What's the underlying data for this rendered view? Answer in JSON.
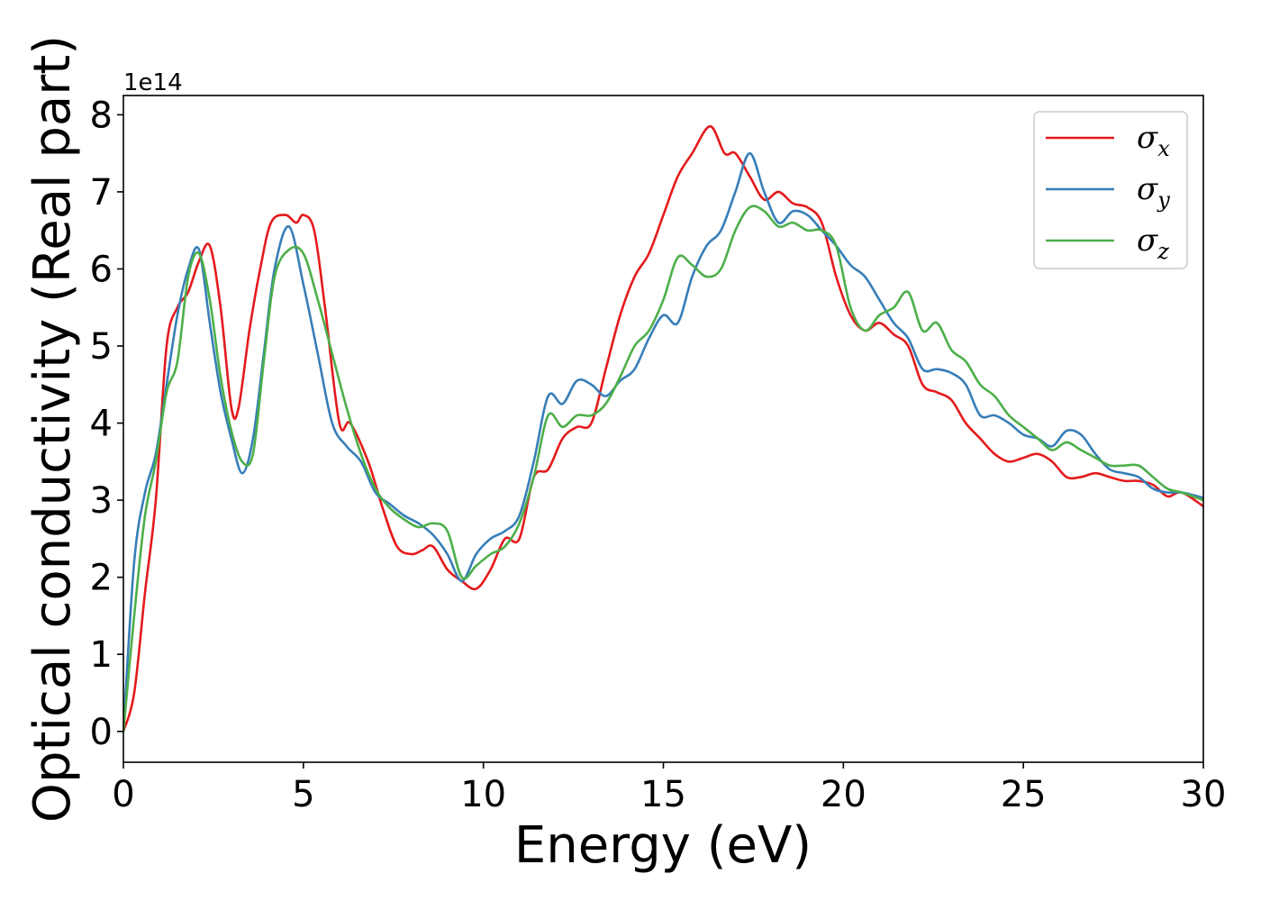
{
  "chart_data": {
    "type": "line",
    "xlabel": "Energy (eV)",
    "ylabel": "Optical conductivity (Real part)",
    "y_offset_label": "1e14",
    "xlim": [
      0,
      30
    ],
    "ylim": [
      -0.4,
      8.25
    ],
    "xticks": [
      "0",
      "5",
      "10",
      "15",
      "20",
      "25",
      "30"
    ],
    "yticks": [
      "0",
      "1",
      "2",
      "3",
      "4",
      "5",
      "6",
      "7",
      "8"
    ],
    "grid": false,
    "legend": {
      "position": "top-right"
    },
    "series": [
      {
        "name": "σx",
        "symbol": "σ",
        "subscript": "x",
        "color": "#e41a1c",
        "x": [
          0,
          0.3,
          0.6,
          0.9,
          1.2,
          1.5,
          1.8,
          2.1,
          2.4,
          2.7,
          3.0,
          3.2,
          3.5,
          3.8,
          4.1,
          4.5,
          4.8,
          5.0,
          5.3,
          5.6,
          6.0,
          6.3,
          6.8,
          7.2,
          7.6,
          8.0,
          8.3,
          8.6,
          9.0,
          9.4,
          9.8,
          10.2,
          10.6,
          11.0,
          11.4,
          11.8,
          12.2,
          12.6,
          13.0,
          13.4,
          13.8,
          14.2,
          14.6,
          15.0,
          15.4,
          15.8,
          16.3,
          16.7,
          17.0,
          17.4,
          17.8,
          18.2,
          18.6,
          19.0,
          19.4,
          19.8,
          20.2,
          20.6,
          21.0,
          21.4,
          21.8,
          22.2,
          22.6,
          23.0,
          23.4,
          23.8,
          24.2,
          24.6,
          25.0,
          25.4,
          25.8,
          26.2,
          26.6,
          27.0,
          27.4,
          27.8,
          28.2,
          28.6,
          29.0,
          29.4,
          30.0
        ],
        "y": [
          0,
          0.5,
          1.8,
          3.0,
          5.0,
          5.5,
          5.7,
          6.1,
          6.3,
          5.5,
          4.2,
          4.2,
          5.2,
          6.0,
          6.6,
          6.7,
          6.6,
          6.7,
          6.5,
          5.5,
          4.0,
          4.0,
          3.5,
          2.9,
          2.4,
          2.3,
          2.35,
          2.4,
          2.1,
          1.95,
          1.85,
          2.1,
          2.5,
          2.5,
          3.3,
          3.4,
          3.8,
          3.95,
          4.0,
          4.7,
          5.4,
          5.9,
          6.2,
          6.7,
          7.2,
          7.5,
          7.85,
          7.5,
          7.5,
          7.2,
          6.9,
          7.0,
          6.85,
          6.8,
          6.6,
          5.9,
          5.4,
          5.2,
          5.3,
          5.15,
          5.0,
          4.5,
          4.4,
          4.3,
          4.0,
          3.8,
          3.6,
          3.5,
          3.55,
          3.6,
          3.5,
          3.3,
          3.3,
          3.35,
          3.3,
          3.25,
          3.25,
          3.2,
          3.05,
          3.1,
          2.92
        ]
      },
      {
        "name": "σy",
        "symbol": "σ",
        "subscript": "y",
        "color": "#377eb8",
        "x": [
          0,
          0.3,
          0.6,
          0.9,
          1.2,
          1.5,
          1.8,
          2.1,
          2.4,
          2.7,
          3.0,
          3.3,
          3.6,
          3.9,
          4.2,
          4.6,
          5.0,
          5.4,
          5.8,
          6.2,
          6.6,
          7.0,
          7.4,
          7.8,
          8.2,
          8.6,
          9.0,
          9.4,
          9.8,
          10.2,
          10.6,
          11.0,
          11.4,
          11.8,
          12.2,
          12.6,
          13.0,
          13.4,
          13.8,
          14.2,
          14.6,
          15.0,
          15.4,
          15.8,
          16.2,
          16.6,
          17.0,
          17.4,
          17.8,
          18.2,
          18.6,
          19.0,
          19.4,
          19.8,
          20.2,
          20.6,
          21.0,
          21.4,
          21.8,
          22.2,
          22.6,
          23.0,
          23.4,
          23.8,
          24.2,
          24.6,
          25.0,
          25.4,
          25.8,
          26.2,
          26.6,
          27.0,
          27.4,
          27.8,
          28.2,
          28.6,
          29.0,
          29.4,
          30.0
        ],
        "y": [
          0,
          2.2,
          3.1,
          3.6,
          4.5,
          5.4,
          6.0,
          6.25,
          5.3,
          4.4,
          3.8,
          3.35,
          3.8,
          4.9,
          6.0,
          6.55,
          5.8,
          4.9,
          4.0,
          3.7,
          3.5,
          3.1,
          2.95,
          2.8,
          2.7,
          2.55,
          2.3,
          1.95,
          2.3,
          2.5,
          2.6,
          2.8,
          3.5,
          4.35,
          4.25,
          4.55,
          4.5,
          4.35,
          4.55,
          4.7,
          5.1,
          5.4,
          5.3,
          5.9,
          6.3,
          6.5,
          7.0,
          7.5,
          7.0,
          6.6,
          6.75,
          6.7,
          6.5,
          6.3,
          6.05,
          5.9,
          5.6,
          5.3,
          5.1,
          4.7,
          4.7,
          4.65,
          4.5,
          4.1,
          4.1,
          4.0,
          3.85,
          3.8,
          3.7,
          3.9,
          3.85,
          3.6,
          3.4,
          3.35,
          3.3,
          3.15,
          3.1,
          3.1,
          3.03
        ]
      },
      {
        "name": "σz",
        "symbol": "σ",
        "subscript": "z",
        "color": "#4daf4a",
        "x": [
          0,
          0.3,
          0.6,
          0.9,
          1.2,
          1.5,
          1.8,
          2.1,
          2.4,
          2.7,
          3.0,
          3.3,
          3.6,
          3.9,
          4.2,
          4.6,
          5.0,
          5.4,
          5.8,
          6.2,
          6.6,
          7.0,
          7.4,
          7.8,
          8.2,
          8.6,
          9.0,
          9.4,
          9.8,
          10.2,
          10.6,
          11.0,
          11.4,
          11.8,
          12.2,
          12.6,
          13.0,
          13.4,
          13.8,
          14.2,
          14.6,
          15.0,
          15.4,
          15.8,
          16.2,
          16.6,
          17.0,
          17.4,
          17.8,
          18.2,
          18.6,
          19.0,
          19.4,
          19.8,
          20.2,
          20.6,
          21.0,
          21.4,
          21.8,
          22.2,
          22.6,
          23.0,
          23.4,
          23.8,
          24.2,
          24.6,
          25.0,
          25.4,
          25.8,
          26.2,
          26.6,
          27.0,
          27.4,
          27.8,
          28.2,
          28.6,
          29.0,
          29.4,
          30.0
        ],
        "y": [
          0,
          1.5,
          2.8,
          3.5,
          4.4,
          4.8,
          5.9,
          6.2,
          5.6,
          4.6,
          3.9,
          3.5,
          3.6,
          4.8,
          5.9,
          6.25,
          6.2,
          5.6,
          4.9,
          4.2,
          3.6,
          3.15,
          2.9,
          2.75,
          2.65,
          2.7,
          2.6,
          2.0,
          2.15,
          2.3,
          2.4,
          2.7,
          3.3,
          4.1,
          3.95,
          4.1,
          4.1,
          4.25,
          4.6,
          5.0,
          5.2,
          5.6,
          6.15,
          6.05,
          5.9,
          6.0,
          6.5,
          6.8,
          6.75,
          6.55,
          6.6,
          6.5,
          6.5,
          6.3,
          5.5,
          5.2,
          5.4,
          5.5,
          5.7,
          5.2,
          5.3,
          4.95,
          4.8,
          4.5,
          4.35,
          4.1,
          3.95,
          3.8,
          3.65,
          3.75,
          3.65,
          3.55,
          3.45,
          3.45,
          3.45,
          3.3,
          3.15,
          3.1,
          3.0
        ]
      }
    ]
  }
}
